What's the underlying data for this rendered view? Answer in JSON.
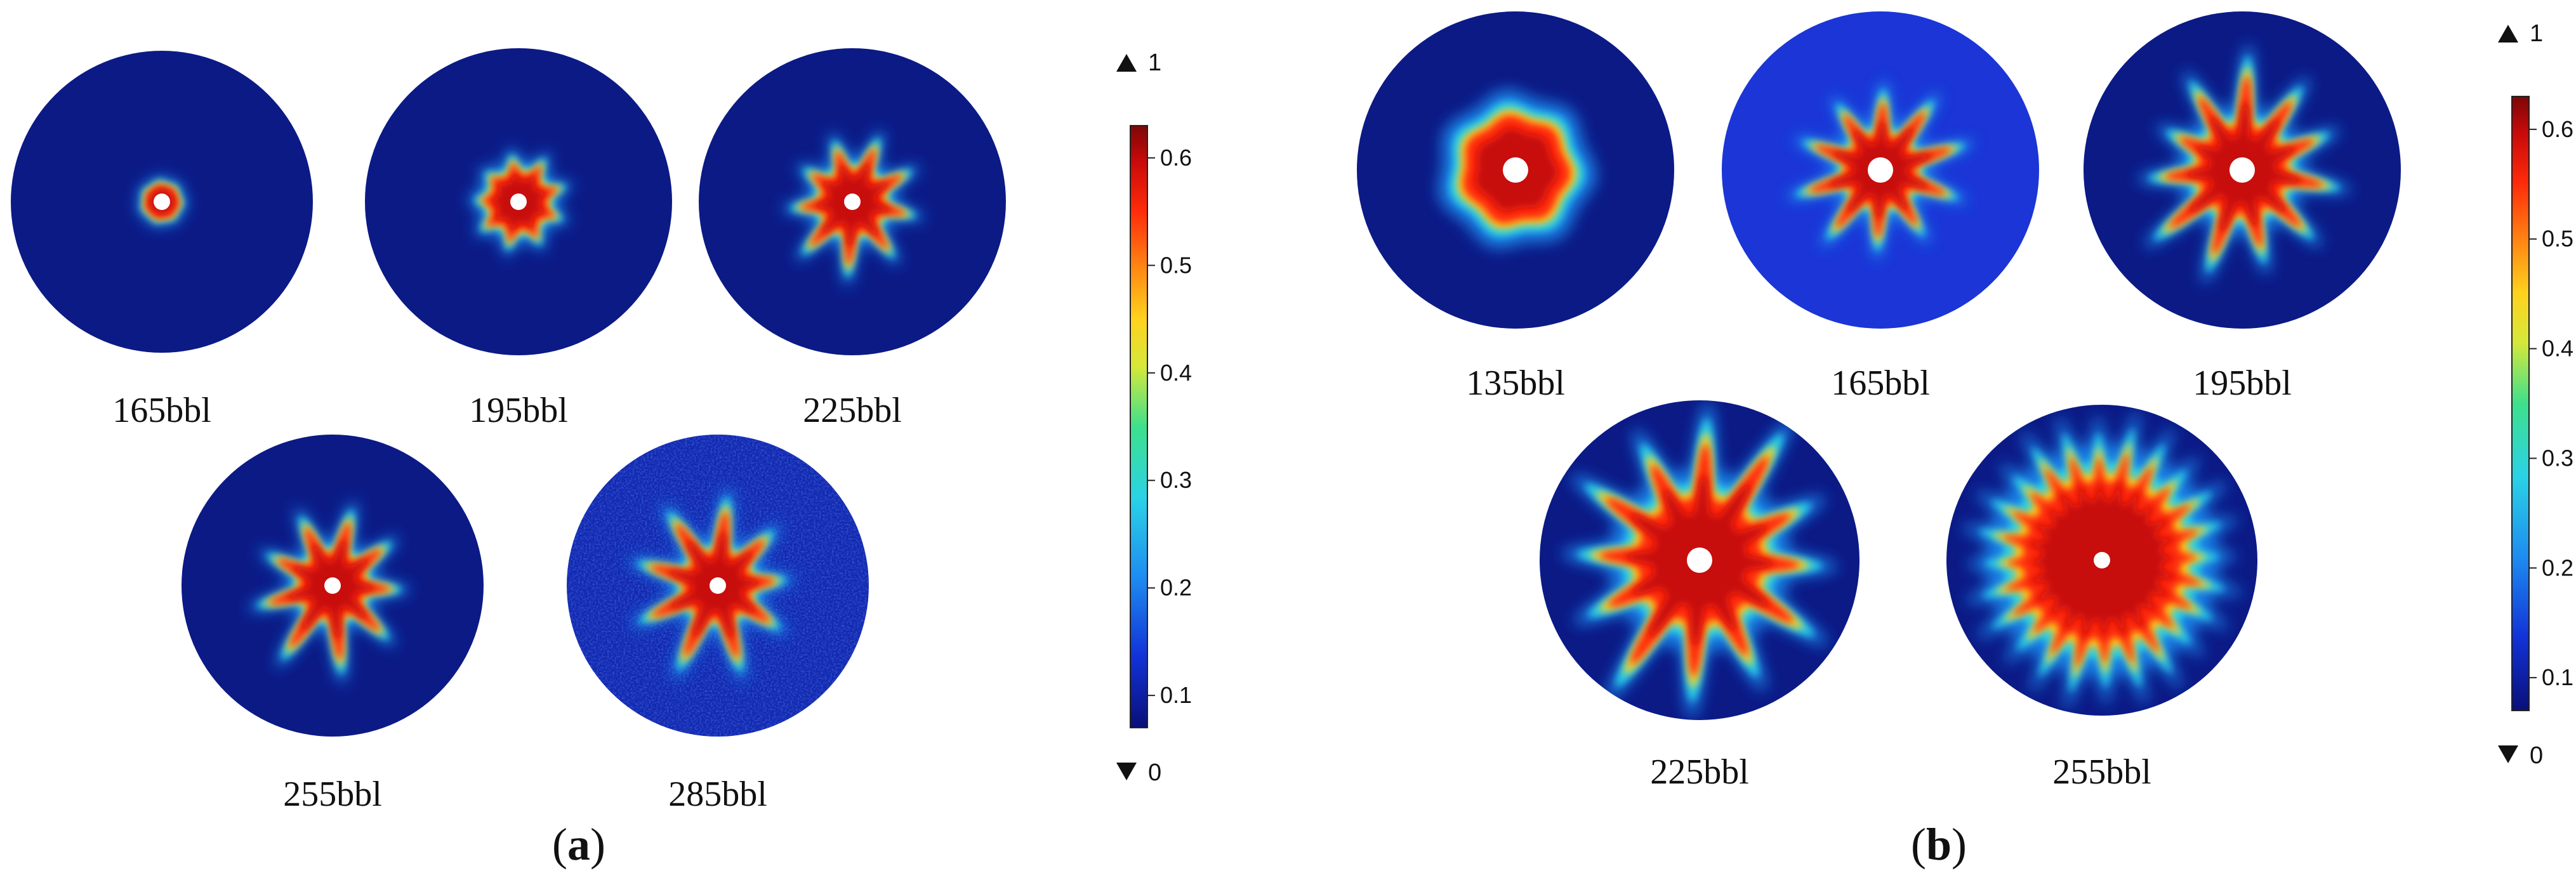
{
  "figure": {
    "panel_a": {
      "label_open": "(",
      "label_letter": "a",
      "label_close": ")",
      "simulations": [
        {
          "volume": "165bbl",
          "extent": 0.12,
          "arms": 0,
          "arm_len": 0.0,
          "speckle": false,
          "bg": "#0c1a86"
        },
        {
          "volume": "195bbl",
          "extent": 0.2,
          "arms": 9,
          "arm_len": 0.1,
          "speckle": false,
          "bg": "#0c1a86"
        },
        {
          "volume": "225bbl",
          "extent": 0.22,
          "arms": 9,
          "arm_len": 0.22,
          "speckle": false,
          "bg": "#0c1a86"
        },
        {
          "volume": "255bbl",
          "extent": 0.23,
          "arms": 9,
          "arm_len": 0.3,
          "speckle": false,
          "bg": "#0c1a86"
        },
        {
          "volume": "285bbl",
          "extent": 0.24,
          "arms": 9,
          "arm_len": 0.33,
          "speckle": true,
          "bg": "#1228b0"
        }
      ],
      "colorbar": {
        "max_label": "1",
        "min_label": "0",
        "ticks": [
          "0.6",
          "0.5",
          "0.4",
          "0.3",
          "0.2",
          "0.1"
        ],
        "tick_values": [
          0.6,
          0.5,
          0.4,
          0.3,
          0.2,
          0.1
        ],
        "range": [
          0.07,
          0.63
        ]
      }
    },
    "panel_b": {
      "label_open": "(",
      "label_letter": "b",
      "label_close": ")",
      "simulations": [
        {
          "volume": "135bbl",
          "extent": 0.36,
          "arms": 0,
          "arm_len": 0.0,
          "speckle": false,
          "bg": "#0c1a86"
        },
        {
          "volume": "165bbl",
          "extent": 0.24,
          "arms": 10,
          "arm_len": 0.3,
          "speckle": false,
          "bg": "#1b35d6"
        },
        {
          "volume": "195bbl",
          "extent": 0.3,
          "arms": 11,
          "arm_len": 0.34,
          "speckle": false,
          "bg": "#0c1a86"
        },
        {
          "volume": "225bbl",
          "extent": 0.42,
          "arms": 12,
          "arm_len": 0.42,
          "speckle": false,
          "bg": "#0c1a86"
        },
        {
          "volume": "255bbl",
          "extent": 0.55,
          "arms": 24,
          "arm_len": 0.22,
          "speckle": false,
          "bg": "#0c1a86"
        }
      ],
      "colorbar": {
        "max_label": "1",
        "min_label": "0",
        "ticks": [
          "0.6",
          "0.5",
          "0.4",
          "0.3",
          "0.2",
          "0.1"
        ],
        "tick_values": [
          0.6,
          0.5,
          0.4,
          0.3,
          0.2,
          0.1
        ],
        "range": [
          0.07,
          0.63
        ]
      }
    },
    "colors": {
      "colormap": [
        "#0a0f78",
        "#1233d8",
        "#1e8cf0",
        "#2ad2e6",
        "#3ee08c",
        "#d6e83a",
        "#ffd21e",
        "#ff8a14",
        "#ff2a0a",
        "#c80a0a",
        "#7d0707"
      ],
      "well": "#ffffff",
      "background": "#ffffff"
    }
  }
}
